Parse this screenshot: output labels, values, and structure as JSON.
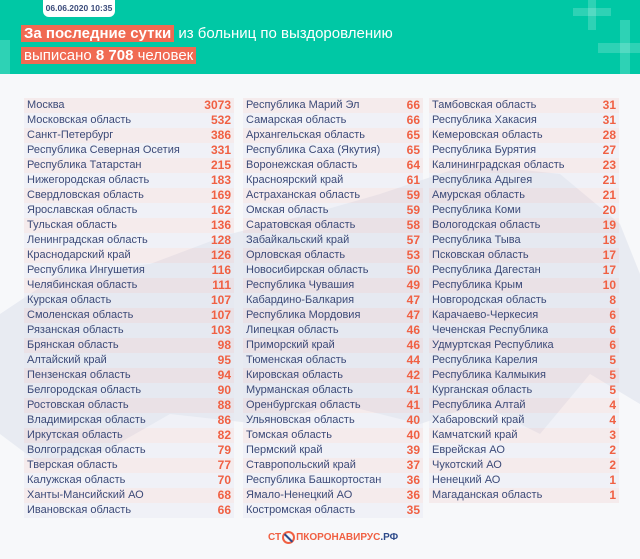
{
  "header": {
    "date": "06.06.2020 10:35",
    "title_highlight": "За последние сутки",
    "title_rest": " из больниц по выздоровлению",
    "line2_prefix": "выписано ",
    "line2_number": "8 708",
    "line2_suffix": " человек"
  },
  "colors": {
    "header_bg": "#00c8a5",
    "accent": "#f06043",
    "text": "#3c4a78"
  },
  "columns": [
    [
      {
        "name": "Москва",
        "value": "3073"
      },
      {
        "name": "Московская область",
        "value": "532"
      },
      {
        "name": "Санкт-Петербург",
        "value": "386"
      },
      {
        "name": "Республика Северная Осетия",
        "value": "331"
      },
      {
        "name": "Республика Татарстан",
        "value": "215"
      },
      {
        "name": "Нижегородская область",
        "value": "183"
      },
      {
        "name": "Свердловская область",
        "value": "169"
      },
      {
        "name": "Ярославская область",
        "value": "162"
      },
      {
        "name": "Тульская область",
        "value": "136"
      },
      {
        "name": "Ленинградская область",
        "value": "128"
      },
      {
        "name": "Краснодарский край",
        "value": "126"
      },
      {
        "name": "Республика Ингушетия",
        "value": "116"
      },
      {
        "name": "Челябинская область",
        "value": "111"
      },
      {
        "name": "Курская область",
        "value": "107"
      },
      {
        "name": "Смоленская область",
        "value": "107"
      },
      {
        "name": "Рязанская область",
        "value": "103"
      },
      {
        "name": "Брянская область",
        "value": "98"
      },
      {
        "name": "Алтайский край",
        "value": "95"
      },
      {
        "name": "Пензенская область",
        "value": "94"
      },
      {
        "name": "Белгородская область",
        "value": "90"
      },
      {
        "name": "Ростовская область",
        "value": "88"
      },
      {
        "name": "Владимирская область",
        "value": "86"
      },
      {
        "name": "Иркутская область",
        "value": "82"
      },
      {
        "name": "Волгоградская область",
        "value": "79"
      },
      {
        "name": "Тверская область",
        "value": "77"
      },
      {
        "name": "Калужская область",
        "value": "70"
      },
      {
        "name": "Ханты-Мансийский АО",
        "value": "68"
      },
      {
        "name": "Ивановская область",
        "value": "66"
      }
    ],
    [
      {
        "name": "Республика Марий Эл",
        "value": "66"
      },
      {
        "name": "Самарская область",
        "value": "66"
      },
      {
        "name": "Архангельская область",
        "value": "65"
      },
      {
        "name": "Республика Саха (Якутия)",
        "value": "65"
      },
      {
        "name": "Воронежская область",
        "value": "64"
      },
      {
        "name": "Красноярский край",
        "value": "61"
      },
      {
        "name": "Астраханская область",
        "value": "59"
      },
      {
        "name": "Омская область",
        "value": "59"
      },
      {
        "name": "Саратовская область",
        "value": "58"
      },
      {
        "name": "Забайкальский край",
        "value": "57"
      },
      {
        "name": "Орловская область",
        "value": "53"
      },
      {
        "name": "Новосибирская область",
        "value": "50"
      },
      {
        "name": "Республика Чувашия",
        "value": "49"
      },
      {
        "name": "Кабардино-Балкария",
        "value": "47"
      },
      {
        "name": "Республика Мордовия",
        "value": "47"
      },
      {
        "name": "Липецкая область",
        "value": "46"
      },
      {
        "name": "Приморский край",
        "value": "46"
      },
      {
        "name": "Тюменская область",
        "value": "44"
      },
      {
        "name": "Кировская область",
        "value": "42"
      },
      {
        "name": "Мурманская область",
        "value": "41"
      },
      {
        "name": "Оренбургская область",
        "value": "41"
      },
      {
        "name": "Ульяновская область",
        "value": "40"
      },
      {
        "name": "Томская область",
        "value": "40"
      },
      {
        "name": "Пермский край",
        "value": "39"
      },
      {
        "name": "Ставропольский край",
        "value": "37"
      },
      {
        "name": "Республика Башкортостан",
        "value": "36"
      },
      {
        "name": "Ямало-Ненецкий АО",
        "value": "36"
      },
      {
        "name": "Костромская область",
        "value": "35"
      }
    ],
    [
      {
        "name": "Тамбовская область",
        "value": "31"
      },
      {
        "name": "Республика Хакасия",
        "value": "31"
      },
      {
        "name": "Кемеровская область",
        "value": "28"
      },
      {
        "name": "Республика Бурятия",
        "value": "27"
      },
      {
        "name": "Калининградская область",
        "value": "23"
      },
      {
        "name": "Республика Адыгея",
        "value": "21"
      },
      {
        "name": "Амурская область",
        "value": "21"
      },
      {
        "name": "Республика Коми",
        "value": "20"
      },
      {
        "name": "Вологодская область",
        "value": "19"
      },
      {
        "name": "Республика Тыва",
        "value": "18"
      },
      {
        "name": "Псковская область",
        "value": "17"
      },
      {
        "name": "Республика Дагестан",
        "value": "17"
      },
      {
        "name": "Республика Крым",
        "value": "10"
      },
      {
        "name": "Новгородская область",
        "value": "8"
      },
      {
        "name": "Карачаево-Черкесия",
        "value": "6"
      },
      {
        "name": "Чеченская Республика",
        "value": "6"
      },
      {
        "name": "Удмуртская Республика",
        "value": "6"
      },
      {
        "name": "Республика Карелия",
        "value": "5"
      },
      {
        "name": "Республика Калмыкия",
        "value": "5"
      },
      {
        "name": "Курганская область",
        "value": "5"
      },
      {
        "name": "Республика Алтай",
        "value": "4"
      },
      {
        "name": "Хабаровский край",
        "value": "4"
      },
      {
        "name": "Камчатский край",
        "value": "3"
      },
      {
        "name": "Еврейская АО",
        "value": "2"
      },
      {
        "name": "Чукотский АО",
        "value": "2"
      },
      {
        "name": "Ненецкий АО",
        "value": "1"
      },
      {
        "name": "Магаданская область",
        "value": "1"
      }
    ]
  ],
  "footer": {
    "logo_part1": "СТ",
    "logo_part2": "ПКОРОНАВИРУС",
    "logo_part3": ".РФ"
  }
}
